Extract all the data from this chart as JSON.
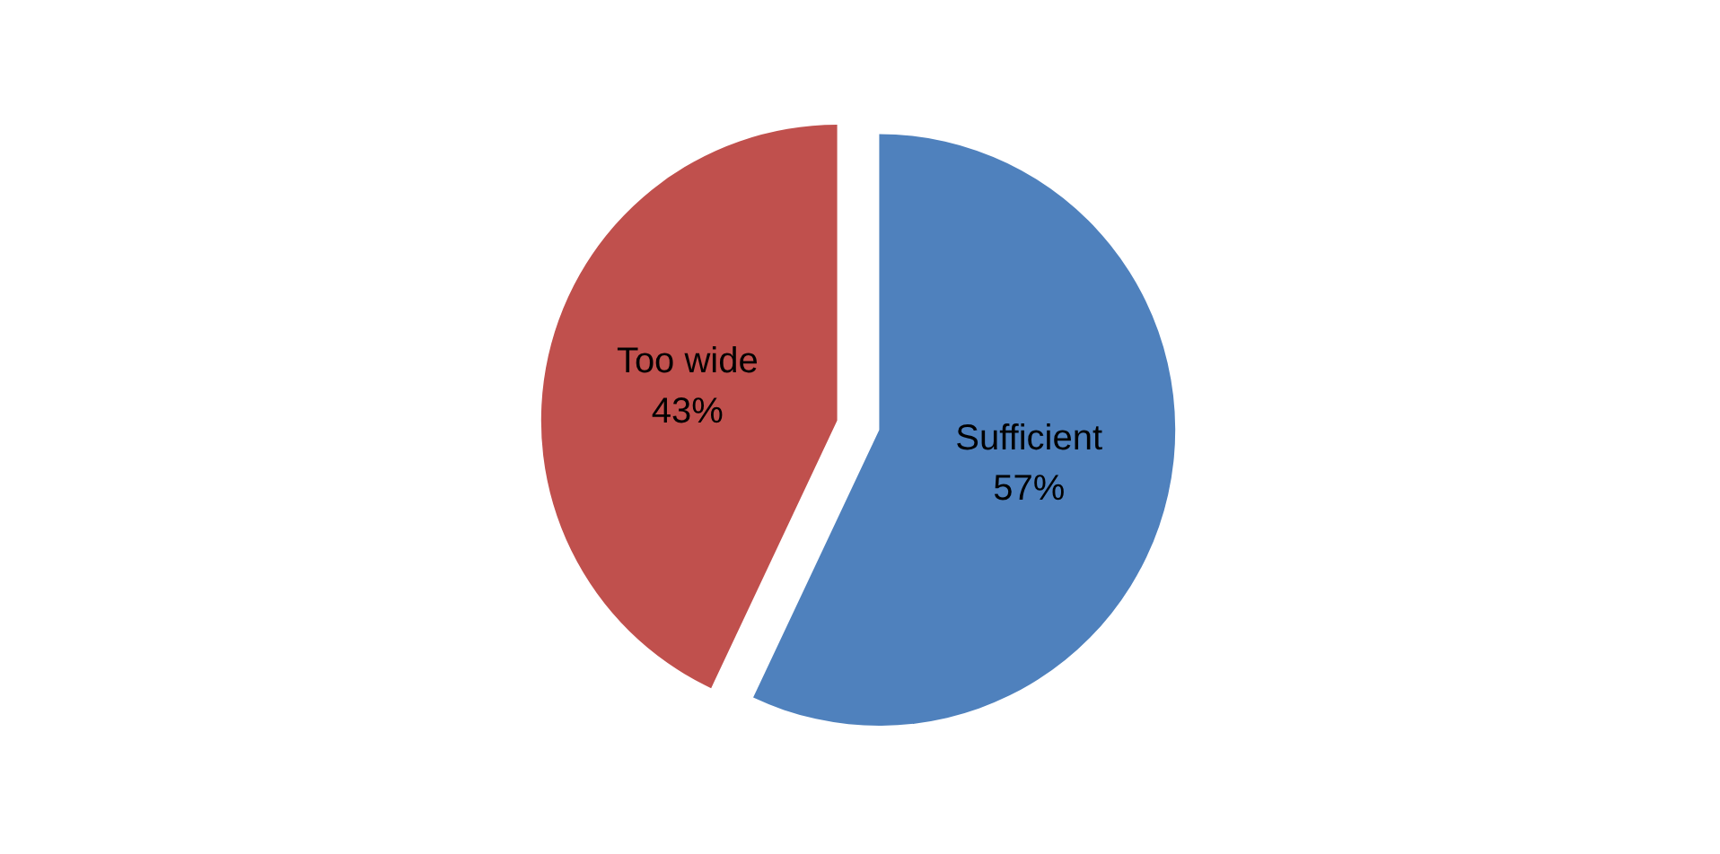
{
  "chart_data": {
    "type": "pie",
    "categories": [
      "Sufficient",
      "Too wide"
    ],
    "values": [
      57,
      43
    ],
    "colors": [
      "#4f81bd",
      "#c0504d"
    ],
    "value_labels": [
      "57%",
      "43%"
    ],
    "legend": false
  }
}
